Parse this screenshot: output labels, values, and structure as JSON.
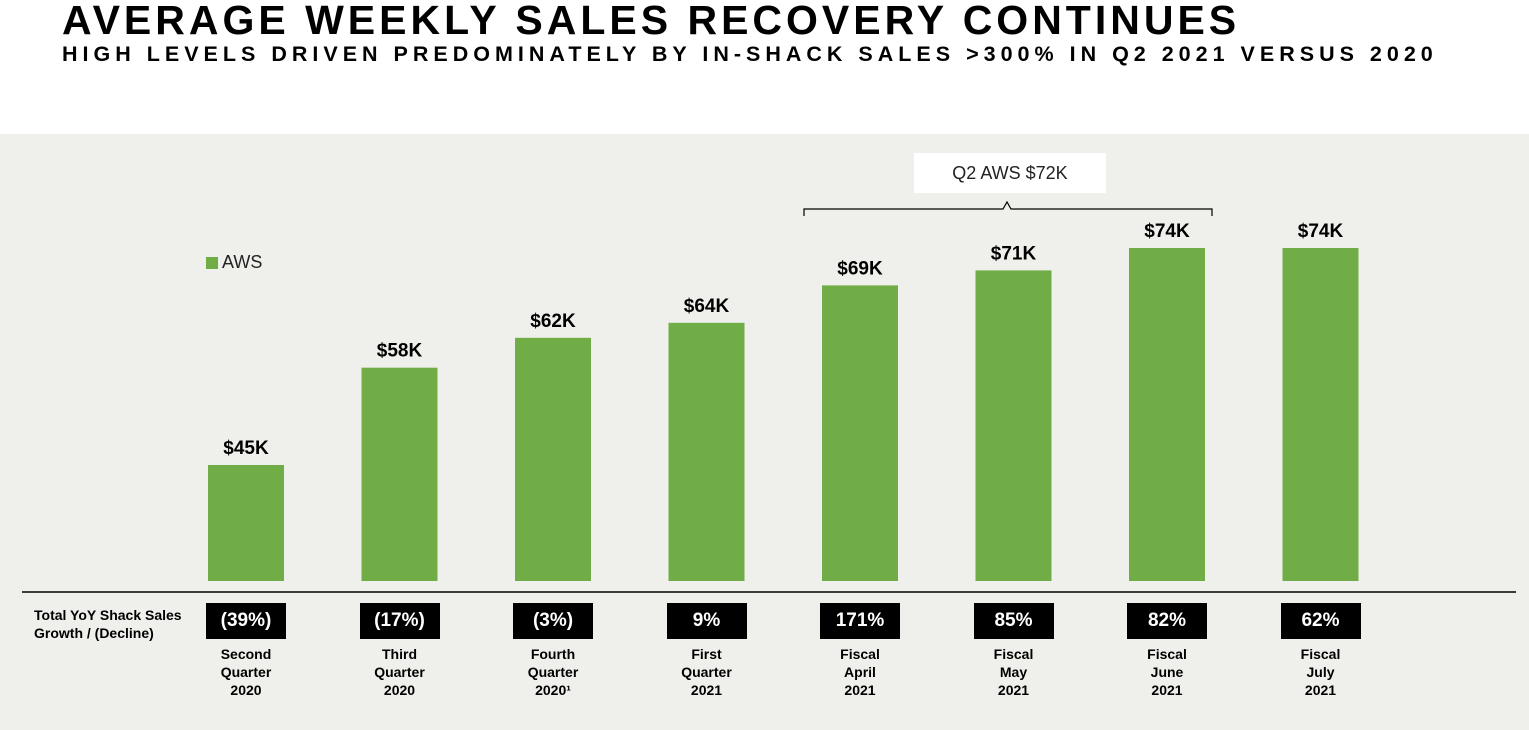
{
  "header": {
    "title": "AVERAGE WEEKLY SALES RECOVERY CONTINUES",
    "subtitle": "HIGH LEVELS DRIVEN PREDOMINATELY BY IN-SHACK SALES >300% IN Q2 2021 VERSUS 2020"
  },
  "colors": {
    "bar": "#70ad47",
    "panel": "#efefeb",
    "growth_box": "#000000"
  },
  "callout": {
    "label": "Q2 AWS $72K"
  },
  "growth_row": {
    "label_line1": "Total YoY Shack Sales",
    "label_line2": "Growth / (Decline)"
  },
  "chart_data": {
    "type": "bar",
    "categories": [
      "Second\nQuarter\n2020",
      "Third\nQuarter\n2020",
      "Fourth\nQuarter\n2020¹",
      "First\nQuarter\n2021",
      "Fiscal\nApril\n2021",
      "Fiscal\nMay\n2021",
      "Fiscal\nJune\n2021",
      "Fiscal\nJuly\n2021"
    ],
    "series": [
      {
        "name": "AWS",
        "values": [
          45,
          58,
          62,
          64,
          69,
          71,
          74,
          74
        ]
      }
    ],
    "data_labels": [
      "$45K",
      "$58K",
      "$62K",
      "$64K",
      "$69K",
      "$71K",
      "$74K",
      "$74K"
    ],
    "growth_labels": [
      "(39%)",
      "(17%)",
      "(3%)",
      "9%",
      "171%",
      "85%",
      "82%",
      "62%"
    ],
    "ylim": [
      0,
      80
    ],
    "legend": "top-left",
    "grid": false
  }
}
